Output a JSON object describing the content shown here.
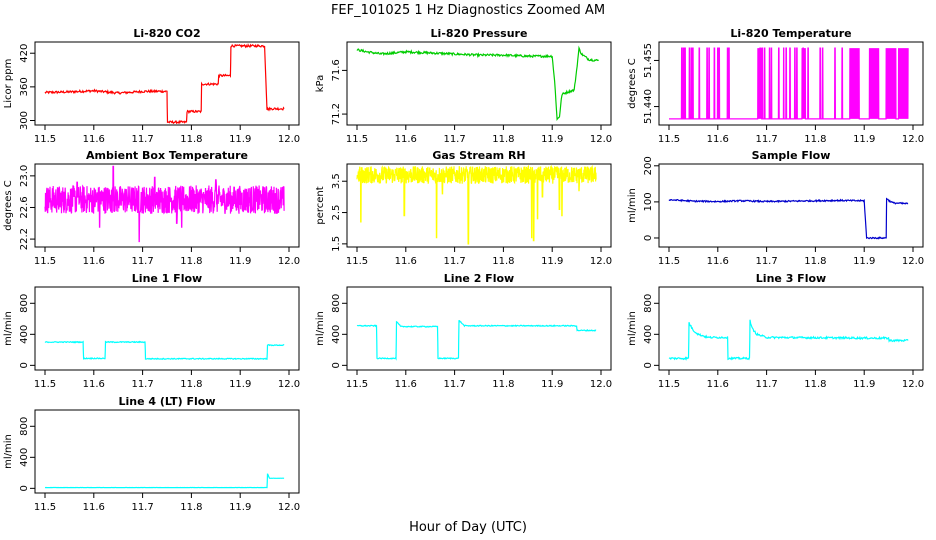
{
  "figure": {
    "title": "FEF_101025  1 Hz Diagnostics Zoomed AM",
    "xlabel": "Hour of Day (UTC)"
  },
  "chart_data": [
    {
      "type": "line",
      "title": "Li-820 CO2",
      "ylabel": "Licor ppm",
      "color": "#ff0000",
      "xlim": [
        11.5,
        12.0
      ],
      "xticks": [
        "11.5",
        "11.6",
        "11.7",
        "11.8",
        "11.9",
        "12.0"
      ],
      "ylim": [
        292,
        440
      ],
      "yticks": [
        "300",
        "360",
        "420"
      ],
      "noise": 2,
      "x": [
        11.5,
        11.55,
        11.6,
        11.65,
        11.705,
        11.75,
        11.751,
        11.79,
        11.791,
        11.82,
        11.821,
        11.855,
        11.856,
        11.88,
        11.881,
        11.95,
        11.955,
        11.962,
        11.99
      ],
      "y": [
        350,
        351,
        353,
        349,
        352,
        352,
        297,
        297,
        316,
        316,
        365,
        365,
        380,
        380,
        433,
        433,
        320,
        321,
        321
      ]
    },
    {
      "type": "line",
      "title": "Li-820 Pressure",
      "ylabel": "kPa",
      "color": "#00cc00",
      "xlim": [
        11.5,
        12.0
      ],
      "xticks": [
        "11.5",
        "11.6",
        "11.7",
        "11.8",
        "11.9",
        "12.0"
      ],
      "ylim": [
        71.1,
        71.86
      ],
      "yticks": [
        "71.2",
        "71.6"
      ],
      "noise": 0.01,
      "x": [
        11.5,
        11.52,
        11.55,
        11.6,
        11.65,
        11.7,
        11.75,
        11.8,
        11.85,
        11.9,
        11.905,
        11.91,
        11.915,
        11.92,
        11.93,
        11.945,
        11.95,
        11.955,
        11.96,
        11.975,
        11.995
      ],
      "y": [
        71.79,
        71.77,
        71.75,
        71.77,
        71.76,
        71.75,
        71.74,
        71.74,
        71.73,
        71.73,
        71.5,
        71.15,
        71.18,
        71.38,
        71.4,
        71.42,
        71.6,
        71.8,
        71.75,
        71.7,
        71.69
      ]
    },
    {
      "type": "line",
      "title": "Li-820 Temperature",
      "ylabel": "degrees C",
      "color": "#ff00ff",
      "xlim": [
        11.5,
        12.0
      ],
      "xticks": [
        "11.5",
        "11.6",
        "11.7",
        "11.8",
        "11.9",
        "12.0"
      ],
      "ylim": [
        51.434,
        51.461
      ],
      "yticks": [
        "51.440",
        "51.455"
      ],
      "low": 51.436,
      "high": 51.459,
      "spikes": [
        11.526,
        11.53,
        11.533,
        11.542,
        11.546,
        11.549,
        11.562,
        11.578,
        11.582,
        11.593,
        11.6,
        11.603,
        11.62,
        11.623,
        11.687,
        11.691,
        11.696,
        11.706,
        11.71,
        11.725,
        11.735,
        11.74,
        11.748,
        11.758,
        11.762,
        11.775,
        11.785,
        11.81,
        11.815,
        11.84,
        11.855
      ],
      "bands": [
        [
          11.682,
          11.69
        ],
        [
          11.772,
          11.78
        ],
        [
          11.87,
          11.89
        ],
        [
          11.91,
          11.93
        ],
        [
          11.945,
          11.965
        ],
        [
          11.97,
          11.995
        ]
      ]
    },
    {
      "type": "line",
      "title": "Ambient Box Temperature",
      "ylabel": "degrees C",
      "color": "#ff00ff",
      "xlim": [
        11.5,
        12.0
      ],
      "xticks": [
        "11.5",
        "11.6",
        "11.7",
        "11.8",
        "11.9",
        "12.0"
      ],
      "ylim": [
        22.1,
        23.15
      ],
      "yticks": [
        "22.2",
        "22.6",
        "23.0"
      ],
      "center": 22.7,
      "amp": 0.18,
      "spikes": [
        [
          11.64,
          23.12
        ],
        [
          11.693,
          22.17
        ],
        [
          11.725,
          22.98
        ],
        [
          11.612,
          22.35
        ],
        [
          11.566,
          22.92
        ],
        [
          11.77,
          22.4
        ],
        [
          11.85,
          22.95
        ],
        [
          11.78,
          22.35
        ]
      ]
    },
    {
      "type": "line",
      "title": "Gas Stream RH",
      "ylabel": "percent",
      "color": "#ffff00",
      "xlim": [
        11.5,
        12.0
      ],
      "xticks": [
        "11.5",
        "11.6",
        "11.7",
        "11.8",
        "11.9",
        "12.0"
      ],
      "ylim": [
        1.4,
        4.05
      ],
      "yticks": [
        "1.5",
        "2.5",
        "3.5"
      ],
      "center": 3.7,
      "amp": 0.28,
      "spikes": [
        [
          11.508,
          2.2
        ],
        [
          11.597,
          2.4
        ],
        [
          11.663,
          1.7
        ],
        [
          11.728,
          1.5
        ],
        [
          11.858,
          1.7
        ],
        [
          11.862,
          1.6
        ],
        [
          11.87,
          2.3
        ],
        [
          11.915,
          2.6
        ],
        [
          11.92,
          2.4
        ],
        [
          11.955,
          3.2
        ],
        [
          11.675,
          3.1
        ],
        [
          11.88,
          3.0
        ]
      ]
    },
    {
      "type": "line",
      "title": "Sample Flow",
      "ylabel": "ml/min",
      "color": "#0000cc",
      "xlim": [
        11.5,
        12.0
      ],
      "xticks": [
        "11.5",
        "11.6",
        "11.7",
        "11.8",
        "11.9",
        "12.0"
      ],
      "ylim": [
        -25,
        205
      ],
      "yticks": [
        "0",
        "100",
        "200"
      ],
      "noise": 2,
      "x": [
        11.5,
        11.55,
        11.6,
        11.65,
        11.7,
        11.75,
        11.8,
        11.85,
        11.9,
        11.905,
        11.945,
        11.946,
        11.95,
        11.96,
        11.99
      ],
      "y": [
        106,
        102,
        101,
        103,
        101,
        102,
        103,
        104,
        103,
        0,
        0,
        110,
        104,
        97,
        95
      ]
    },
    {
      "type": "line",
      "title": "Line 1 Flow",
      "ylabel": "ml/min",
      "color": "#00ffff",
      "xlim": [
        11.5,
        12.0
      ],
      "xticks": [
        "11.5",
        "11.6",
        "11.7",
        "11.8",
        "11.9",
        "12.0"
      ],
      "ylim": [
        -60,
        1010
      ],
      "yticks": [
        "0",
        "400",
        "800"
      ],
      "noise": 6,
      "x": [
        11.5,
        11.578,
        11.579,
        11.623,
        11.624,
        11.705,
        11.706,
        11.955,
        11.956,
        11.99
      ],
      "y": [
        300,
        300,
        90,
        90,
        300,
        300,
        85,
        85,
        260,
        260
      ]
    },
    {
      "type": "line",
      "title": "Line 2 Flow",
      "ylabel": "ml/min",
      "color": "#00ffff",
      "xlim": [
        11.5,
        12.0
      ],
      "xticks": [
        "11.5",
        "11.6",
        "11.7",
        "11.8",
        "11.9",
        "12.0"
      ],
      "ylim": [
        -60,
        1010
      ],
      "yticks": [
        "0",
        "400",
        "800"
      ],
      "noise": 6,
      "x": [
        11.5,
        11.54,
        11.541,
        11.58,
        11.581,
        11.59,
        11.665,
        11.666,
        11.708,
        11.709,
        11.72,
        11.95,
        11.951,
        11.99
      ],
      "y": [
        510,
        510,
        90,
        90,
        560,
        500,
        500,
        90,
        90,
        580,
        510,
        510,
        450,
        450
      ]
    },
    {
      "type": "line",
      "title": "Line 3 Flow",
      "ylabel": "ml/min",
      "color": "#00ffff",
      "xlim": [
        11.5,
        12.0
      ],
      "xticks": [
        "11.5",
        "11.6",
        "11.7",
        "11.8",
        "11.9",
        "12.0"
      ],
      "ylim": [
        -60,
        1010
      ],
      "yticks": [
        "0",
        "400",
        "800"
      ],
      "noise": 12,
      "x": [
        11.5,
        11.54,
        11.541,
        11.545,
        11.55,
        11.56,
        11.58,
        11.62,
        11.621,
        11.665,
        11.666,
        11.67,
        11.68,
        11.7,
        11.95,
        11.951,
        11.99
      ],
      "y": [
        90,
        90,
        550,
        500,
        450,
        400,
        360,
        360,
        90,
        90,
        580,
        480,
        400,
        360,
        350,
        320,
        320
      ]
    },
    {
      "type": "line",
      "title": "Line 4 (LT) Flow",
      "ylabel": "ml/min",
      "color": "#00ffff",
      "xlim": [
        11.5,
        12.0
      ],
      "xticks": [
        "11.5",
        "11.6",
        "11.7",
        "11.8",
        "11.9",
        "12.0"
      ],
      "ylim": [
        -60,
        1010
      ],
      "yticks": [
        "0",
        "400",
        "800"
      ],
      "noise": 1,
      "x": [
        11.5,
        11.6,
        11.7,
        11.8,
        11.9,
        11.955,
        11.956,
        11.96,
        11.99
      ],
      "y": [
        10,
        10,
        10,
        10,
        10,
        10,
        190,
        130,
        130
      ]
    }
  ]
}
